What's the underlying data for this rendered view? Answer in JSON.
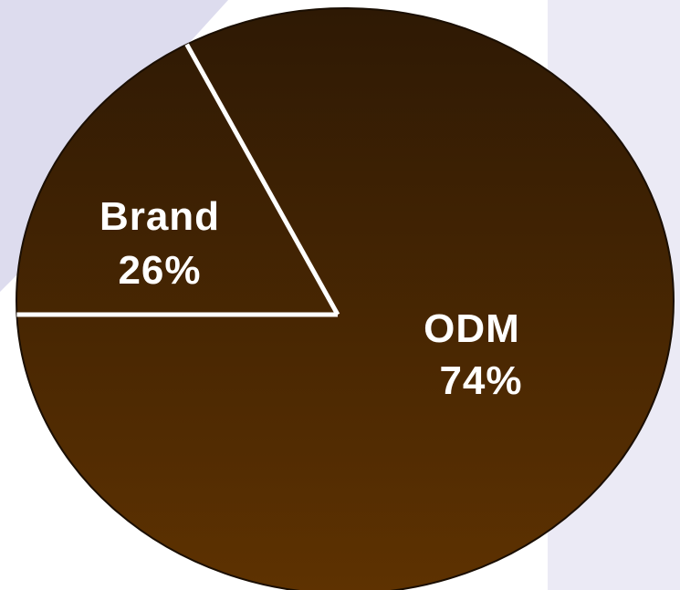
{
  "chart_data": {
    "type": "pie",
    "title": "",
    "slices": [
      {
        "label": "Brand",
        "value": 26,
        "display": "26%"
      },
      {
        "label": "ODM",
        "value": 74,
        "display": "74%"
      }
    ],
    "colors": {
      "fill_top": "#2e1904",
      "fill_bottom": "#5e3201",
      "edge": "#1a0e02",
      "divider": "#ffffff",
      "label": "#ffffff",
      "background_shape": "#dddcee"
    },
    "legend": "none"
  }
}
